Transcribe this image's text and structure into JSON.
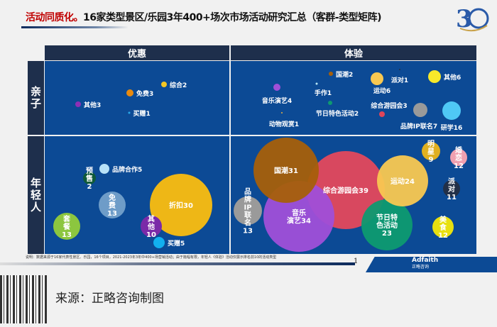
{
  "header": {
    "title_highlight": "活动同质化。",
    "title_rest": "16家类型景区/乐园3年400+场次市场活动研究汇总（客群-类型矩阵)",
    "logo_number": "30"
  },
  "chart_data": {
    "type": "bubble-matrix",
    "columns": [
      "优惠",
      "体验"
    ],
    "rows": [
      "亲子",
      "年轻人"
    ],
    "bubbles": [
      {
        "col": 0,
        "row": 0,
        "name": "其他",
        "value": 3,
        "color": "#8e2fb5"
      },
      {
        "col": 0,
        "row": 0,
        "name": "免费",
        "value": 3,
        "color": "#e98a0e"
      },
      {
        "col": 0,
        "row": 0,
        "name": "综合",
        "value": 2,
        "color": "#f3c623"
      },
      {
        "col": 0,
        "row": 0,
        "name": "买赠",
        "value": 1,
        "color": "#29a9e8"
      },
      {
        "col": 1,
        "row": 0,
        "name": "国潮",
        "value": 2,
        "color": "#a65f0a"
      },
      {
        "col": 1,
        "row": 0,
        "name": "派对",
        "value": 1,
        "color": "#223048"
      },
      {
        "col": 1,
        "row": 0,
        "name": "运动",
        "value": 6,
        "color": "#f9c851"
      },
      {
        "col": 1,
        "row": 0,
        "name": "其他",
        "value": 6,
        "color": "#f7e92a"
      },
      {
        "col": 1,
        "row": 0,
        "name": "音乐演艺",
        "value": 4,
        "color": "#a04fd8"
      },
      {
        "col": 1,
        "row": 0,
        "name": "手作",
        "value": 1,
        "color": "#b9e6f5"
      },
      {
        "col": 1,
        "row": 0,
        "name": "节日特色活动",
        "value": 2,
        "color": "#0e9a70"
      },
      {
        "col": 1,
        "row": 0,
        "name": "动物观赏",
        "value": 1,
        "color": "#e8b040"
      },
      {
        "col": 1,
        "row": 0,
        "name": "综合游园会",
        "value": 3,
        "color": "#e0455a"
      },
      {
        "col": 1,
        "row": 0,
        "name": "品牌IP联名",
        "value": 7,
        "color": "#9a9a9a"
      },
      {
        "col": 1,
        "row": 0,
        "name": "研学",
        "value": 16,
        "color": "#4fc8f5"
      },
      {
        "col": 0,
        "row": 1,
        "name": "预售",
        "value": 2,
        "color": "#0f5a3a"
      },
      {
        "col": 0,
        "row": 1,
        "name": "品牌合作",
        "value": 5,
        "color": "#b8e2f8"
      },
      {
        "col": 0,
        "row": 1,
        "name": "免费",
        "value": 13,
        "color": "#6e9cc8"
      },
      {
        "col": 0,
        "row": 1,
        "name": "套餐",
        "value": 13,
        "color": "#8cc63f"
      },
      {
        "col": 0,
        "row": 1,
        "name": "其他",
        "value": 10,
        "color": "#7a2aa8"
      },
      {
        "col": 0,
        "row": 1,
        "name": "折扣",
        "value": 30,
        "color": "#fbbd0f"
      },
      {
        "col": 0,
        "row": 1,
        "name": "买赠",
        "value": 5,
        "color": "#12b0ef"
      },
      {
        "col": 1,
        "row": 1,
        "name": "国潮",
        "value": 31,
        "color": "#a65f0a"
      },
      {
        "col": 1,
        "row": 1,
        "name": "音乐演艺",
        "value": 34,
        "color": "#a04fd8"
      },
      {
        "col": 1,
        "row": 1,
        "name": "综合游园会",
        "value": 39,
        "color": "#e4485c"
      },
      {
        "col": 1,
        "row": 1,
        "name": "节日特色活动",
        "value": 23,
        "color": "#0e9a70"
      },
      {
        "col": 1,
        "row": 1,
        "name": "运动",
        "value": 24,
        "color": "#f9c851"
      },
      {
        "col": 1,
        "row": 1,
        "name": "品牌IP联名",
        "value": 13,
        "color": "#9a9a9a"
      },
      {
        "col": 1,
        "row": 1,
        "name": "明星",
        "value": 9,
        "color": "#e0b020"
      },
      {
        "col": 1,
        "row": 1,
        "name": "婚恋",
        "value": 12,
        "color": "#f0a0b0"
      },
      {
        "col": 1,
        "row": 1,
        "name": "派对",
        "value": 11,
        "color": "#223048"
      },
      {
        "col": 1,
        "row": 1,
        "name": "美食",
        "value": 12,
        "color": "#e8e010"
      }
    ]
  },
  "footer": {
    "note": "说明：数据来源于16家代表性景区、乐园，16个项目，2021-2023年3年中400+场营销活动；由于篇幅有限，年轻人《体验》活动仅展示排名前10的活动类型",
    "page_number": "1",
    "brand_name": "Adfaith",
    "brand_sub": "正略咨询",
    "source": "来源：正略咨询制图"
  }
}
